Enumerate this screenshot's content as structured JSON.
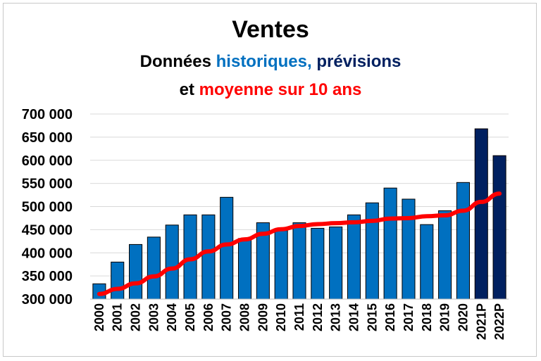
{
  "colors": {
    "historical": "#0070c0",
    "forecast": "#002060",
    "average": "#ff0000",
    "text": "#000000",
    "grid": "#d9d9d9"
  },
  "chart_data": {
    "type": "bar",
    "title": "Ventes",
    "subtitle_line1": {
      "part1": "Données ",
      "part2": "historiques,",
      "part3": " prévisions"
    },
    "subtitle_line2": {
      "part1": "et ",
      "part2": "moyenne sur 10 ans"
    },
    "categories": [
      "2000",
      "2001",
      "2002",
      "2003",
      "2004",
      "2005",
      "2006",
      "2007",
      "2008",
      "2009",
      "2010",
      "2011",
      "2012",
      "2013",
      "2014",
      "2015",
      "2016",
      "2017",
      "2018",
      "2019",
      "2020",
      "2021P",
      "2022P"
    ],
    "series": [
      {
        "name": "Ventes",
        "values": [
          333000,
          380000,
          418000,
          434000,
          460000,
          482000,
          482000,
          520000,
          431000,
          465000,
          448000,
          465000,
          453000,
          456000,
          482000,
          508000,
          540000,
          516000,
          461000,
          491000,
          552000,
          668000,
          610000
        ],
        "forecast_categories": [
          "2021P",
          "2022P"
        ]
      },
      {
        "name": "Moyenne sur 10 ans",
        "type": "line",
        "values": [
          311000,
          322000,
          334000,
          349000,
          366000,
          386000,
          403000,
          418000,
          429000,
          441000,
          451000,
          458000,
          462000,
          464000,
          466000,
          469000,
          474000,
          475000,
          479000,
          481000,
          491000,
          510000,
          528000
        ]
      }
    ],
    "ylim": [
      300000,
      700000
    ],
    "yticks": [
      {
        "value": 300000,
        "label": "300 000"
      },
      {
        "value": 350000,
        "label": "350 000"
      },
      {
        "value": 400000,
        "label": "400 000"
      },
      {
        "value": 450000,
        "label": "450 000"
      },
      {
        "value": 500000,
        "label": "500 000"
      },
      {
        "value": 550000,
        "label": "550 000"
      },
      {
        "value": 600000,
        "label": "600 000"
      },
      {
        "value": 650000,
        "label": "650 000"
      },
      {
        "value": 700000,
        "label": "700 000"
      }
    ],
    "grid": true,
    "xlabel": "",
    "ylabel": ""
  }
}
